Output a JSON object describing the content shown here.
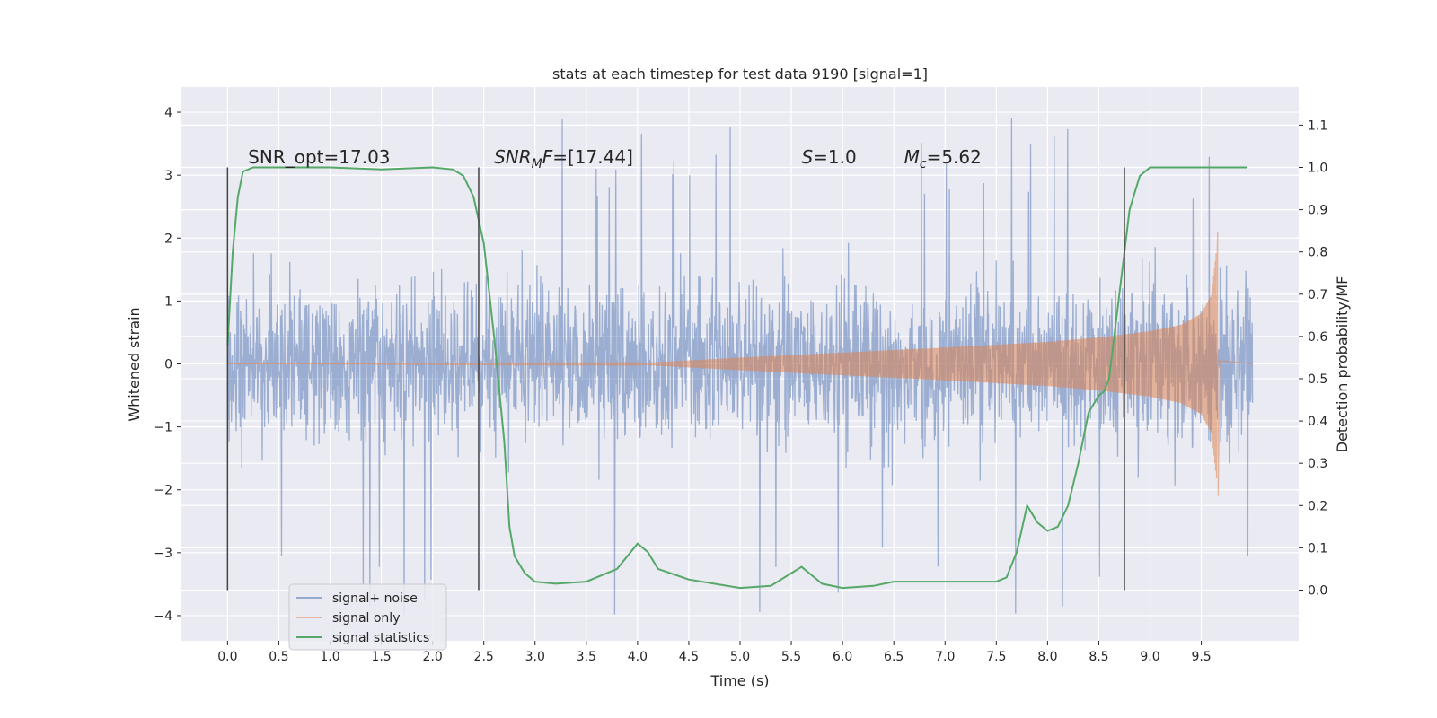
{
  "chart_data": {
    "type": "line",
    "title": "stats at each timestep for test data 9190 [signal=1]",
    "xlabel": "Time (s)",
    "ylabel": "Whitened strain",
    "ylabel_right": "Detection probability/MF",
    "xlim": [
      -0.45,
      10.45
    ],
    "ylim": [
      -4.4,
      4.4
    ],
    "ylim_right": [
      -0.12,
      1.19
    ],
    "x_ticks": [
      0.0,
      0.5,
      1.0,
      1.5,
      2.0,
      2.5,
      3.0,
      3.5,
      4.0,
      4.5,
      5.0,
      5.5,
      6.0,
      6.5,
      7.0,
      7.5,
      8.0,
      8.5,
      9.0,
      9.5
    ],
    "x_tick_labels": [
      "0.0",
      "0.5",
      "1.0",
      "1.5",
      "2.0",
      "2.5",
      "3.0",
      "3.5",
      "4.0",
      "4.5",
      "5.0",
      "5.5",
      "6.0",
      "6.5",
      "7.0",
      "7.5",
      "8.0",
      "8.5",
      "9.0",
      "9.5"
    ],
    "y_ticks": [
      -4,
      -3,
      -2,
      -1,
      0,
      1,
      2,
      3,
      4
    ],
    "y_tick_labels": [
      "−4",
      "−3",
      "−2",
      "−1",
      "0",
      "1",
      "2",
      "3",
      "4"
    ],
    "y_right_ticks": [
      0.0,
      0.1,
      0.2,
      0.3,
      0.4,
      0.5,
      0.6,
      0.7,
      0.8,
      0.9,
      1.0,
      1.1
    ],
    "y_right_tick_labels": [
      "0.0",
      "0.1",
      "0.2",
      "0.3",
      "0.4",
      "0.5",
      "0.6",
      "0.7",
      "0.8",
      "0.9",
      "1.0",
      "1.1"
    ],
    "grid": true,
    "legend_position": "lower-left",
    "series": [
      {
        "name": "signal+ noise",
        "color": "#4c72b0",
        "axis": "left",
        "kind": "noise-band",
        "x_range": [
          0.0,
          10.0
        ],
        "typical_amplitude": 2.0,
        "spike_max": 4.05,
        "spike_min": -4.05
      },
      {
        "name": "signal only",
        "color": "#dd8452",
        "axis": "left",
        "kind": "chirp-envelope",
        "points": [
          [
            0.0,
            0.0
          ],
          [
            4.0,
            0.01
          ],
          [
            5.0,
            0.1
          ],
          [
            6.0,
            0.18
          ],
          [
            7.0,
            0.26
          ],
          [
            8.0,
            0.35
          ],
          [
            8.5,
            0.42
          ],
          [
            9.0,
            0.52
          ],
          [
            9.3,
            0.62
          ],
          [
            9.5,
            0.8
          ],
          [
            9.6,
            1.1
          ],
          [
            9.65,
            1.85
          ],
          [
            9.66,
            -2.1
          ],
          [
            9.67,
            0.05
          ],
          [
            10.0,
            0.0
          ]
        ]
      },
      {
        "name": "signal statistics",
        "color": "#55a868",
        "axis": "right",
        "kind": "line",
        "points": [
          [
            0.0,
            0.58
          ],
          [
            0.05,
            0.8
          ],
          [
            0.1,
            0.93
          ],
          [
            0.15,
            0.99
          ],
          [
            0.25,
            1.0
          ],
          [
            0.5,
            1.0
          ],
          [
            1.0,
            1.0
          ],
          [
            1.5,
            0.995
          ],
          [
            2.0,
            1.0
          ],
          [
            2.2,
            0.995
          ],
          [
            2.3,
            0.98
          ],
          [
            2.4,
            0.93
          ],
          [
            2.5,
            0.82
          ],
          [
            2.6,
            0.6
          ],
          [
            2.7,
            0.35
          ],
          [
            2.75,
            0.15
          ],
          [
            2.8,
            0.08
          ],
          [
            2.9,
            0.04
          ],
          [
            3.0,
            0.02
          ],
          [
            3.2,
            0.015
          ],
          [
            3.5,
            0.02
          ],
          [
            3.8,
            0.05
          ],
          [
            4.0,
            0.11
          ],
          [
            4.1,
            0.09
          ],
          [
            4.2,
            0.05
          ],
          [
            4.5,
            0.025
          ],
          [
            5.0,
            0.005
          ],
          [
            5.3,
            0.01
          ],
          [
            5.5,
            0.04
          ],
          [
            5.6,
            0.055
          ],
          [
            5.7,
            0.035
          ],
          [
            5.8,
            0.015
          ],
          [
            6.0,
            0.005
          ],
          [
            6.3,
            0.01
          ],
          [
            6.5,
            0.02
          ],
          [
            7.0,
            0.02
          ],
          [
            7.5,
            0.02
          ],
          [
            7.6,
            0.03
          ],
          [
            7.7,
            0.09
          ],
          [
            7.8,
            0.2
          ],
          [
            7.85,
            0.18
          ],
          [
            7.9,
            0.16
          ],
          [
            8.0,
            0.14
          ],
          [
            8.1,
            0.15
          ],
          [
            8.2,
            0.2
          ],
          [
            8.3,
            0.3
          ],
          [
            8.4,
            0.42
          ],
          [
            8.5,
            0.46
          ],
          [
            8.55,
            0.47
          ],
          [
            8.6,
            0.5
          ],
          [
            8.7,
            0.7
          ],
          [
            8.8,
            0.9
          ],
          [
            8.9,
            0.98
          ],
          [
            9.0,
            1.0
          ],
          [
            9.5,
            1.0
          ],
          [
            9.95,
            1.0
          ]
        ]
      }
    ],
    "vertical_lines": [
      0.0,
      2.45,
      8.75
    ],
    "vertical_line_color": "#444444",
    "vertical_line_range_right": [
      0.0,
      1.0
    ],
    "annotations": [
      {
        "kind": "snr_opt",
        "text": "SNR_opt=17.03",
        "x": 0.2,
        "y_right": 1.01
      },
      {
        "kind": "snr_mf",
        "prefix": "SNR",
        "sub": "M",
        "suffix": "F=[17.44]",
        "x": 2.6,
        "y_right": 1.01
      },
      {
        "kind": "s",
        "text": "S",
        "suffix": "=1.0",
        "x": 5.6,
        "y_right": 1.01
      },
      {
        "kind": "mc",
        "prefix": "M",
        "sub": "c",
        "suffix": "=5.62",
        "x": 6.6,
        "y_right": 1.01
      }
    ]
  }
}
